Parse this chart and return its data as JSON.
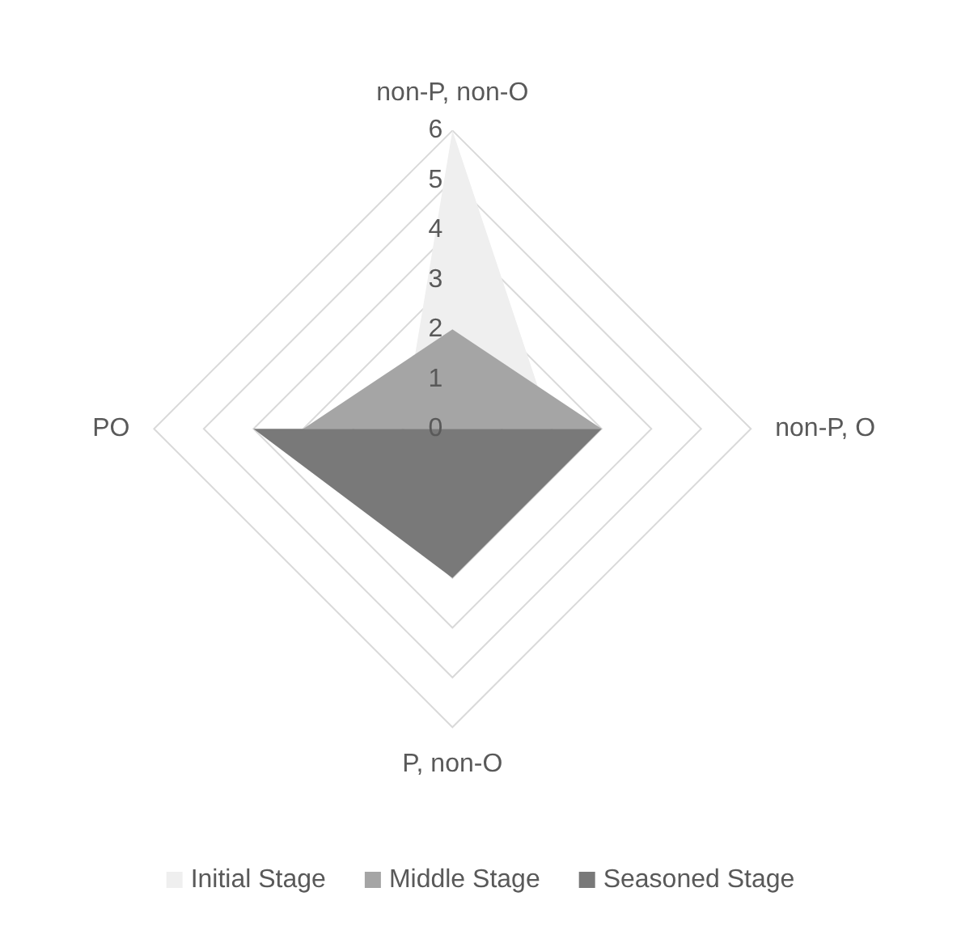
{
  "chart_data": {
    "type": "radar",
    "categories": [
      "non-P, non-O",
      "non-P, O",
      "P, non-O",
      "PO"
    ],
    "series": [
      {
        "name": "Initial Stage",
        "color": "#efefef",
        "values": [
          6,
          2,
          null,
          1
        ]
      },
      {
        "name": "Middle Stage",
        "color": "#a5a5a5",
        "values": [
          2,
          3,
          null,
          3
        ]
      },
      {
        "name": "Seasoned Stage",
        "color": "#797979",
        "values": [
          0,
          3,
          3,
          4
        ]
      }
    ],
    "ylim": [
      0,
      6
    ],
    "yticks": [
      0,
      1,
      2,
      3,
      4,
      5,
      6
    ],
    "grid": true,
    "legend": "bottom",
    "marker": "none"
  }
}
